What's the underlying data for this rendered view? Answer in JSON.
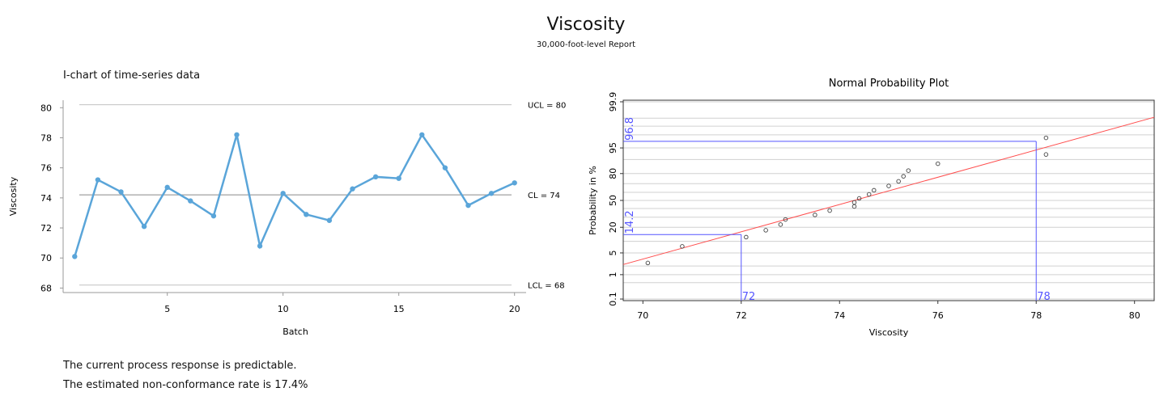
{
  "header": {
    "title": "Viscosity",
    "subtitle": "30,000-foot-level Report"
  },
  "footer": {
    "line1": "The current process response is predictable.",
    "line2": "The estimated non-conformance rate is 17.4%"
  },
  "colors": {
    "series": "#5aa5d9",
    "limit_line": "#c8c8c8",
    "center_line": "#a0a0a0",
    "fit_line": "#ff4d4d",
    "spec_line": "#5555ff",
    "grid": "#d0d0d0"
  },
  "chart_data": [
    {
      "type": "line",
      "title": "I-chart of time-series data",
      "xlabel": "Batch",
      "ylabel": "Viscosity",
      "x": [
        1,
        2,
        3,
        4,
        5,
        6,
        7,
        8,
        9,
        10,
        11,
        12,
        13,
        14,
        15,
        16,
        17,
        18,
        19,
        20
      ],
      "values": [
        70.1,
        75.2,
        74.4,
        72.1,
        74.7,
        73.8,
        72.8,
        78.2,
        70.8,
        74.3,
        72.9,
        72.5,
        74.6,
        75.4,
        75.3,
        78.2,
        76.0,
        73.5,
        74.3,
        75.0
      ],
      "xlim": [
        0.5,
        20.5
      ],
      "ylim": [
        67.7,
        80.5
      ],
      "xticks": [
        5,
        10,
        15,
        20
      ],
      "yticks": [
        68,
        70,
        72,
        74,
        76,
        78,
        80
      ],
      "control_limits": [
        {
          "label": "UCL = 80",
          "value": 80.2
        },
        {
          "label": "CL = 74",
          "value": 74.2
        },
        {
          "label": "LCL = 68",
          "value": 68.2
        }
      ]
    },
    {
      "type": "scatter",
      "title": "Normal Probability Plot",
      "xlabel": "Viscosity",
      "ylabel": "Probability in %",
      "x": [
        70.1,
        70.8,
        72.1,
        72.5,
        72.8,
        72.9,
        73.5,
        73.8,
        74.3,
        74.3,
        74.4,
        74.6,
        74.7,
        75.0,
        75.2,
        75.3,
        75.4,
        76.0,
        78.2,
        78.2
      ],
      "percent": [
        2.5,
        7.5,
        12.5,
        17.5,
        22.5,
        27.5,
        32.5,
        37.5,
        42.5,
        47.5,
        52.5,
        57.5,
        62.5,
        67.5,
        72.5,
        77.5,
        82.5,
        87.5,
        92.5,
        97.5
      ],
      "xlim": [
        69.6,
        80.4
      ],
      "xticks": [
        70,
        72,
        74,
        76,
        78,
        80
      ],
      "yticks": [
        0.1,
        1,
        5,
        20,
        50,
        80,
        95,
        99.9
      ],
      "prob_gridlines": [
        0.1,
        0.5,
        1,
        2,
        5,
        10,
        20,
        30,
        40,
        50,
        60,
        70,
        80,
        90,
        95,
        98,
        99,
        99.5,
        99.9
      ],
      "fit_line": {
        "mean": 74.3,
        "sd": 2.34
      },
      "reference_lines": [
        {
          "x": 72,
          "p": 14.2,
          "x_label": "72",
          "p_label": "14.2"
        },
        {
          "x": 78,
          "p": 96.8,
          "x_label": "78",
          "p_label": "96.8"
        }
      ]
    }
  ]
}
